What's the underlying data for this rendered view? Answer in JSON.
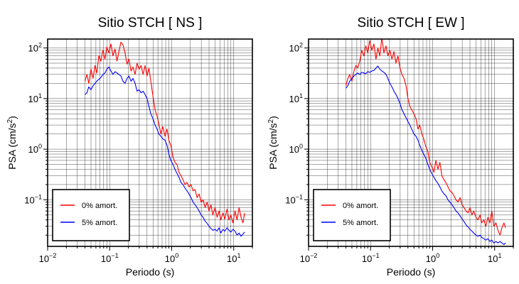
{
  "chart_data": [
    {
      "type": "line",
      "title": "Sitio STCH [ NS ]",
      "xlabel": "Periodo (s)",
      "ylabel_main": "PSA (cm/s",
      "ylabel_sup": "2",
      "ylabel_end": ")",
      "xscale": "log",
      "yscale": "log",
      "xlim": [
        0.01,
        20
      ],
      "ylim": [
        0.012,
        150
      ],
      "x_ticks": [
        {
          "value": 0.01,
          "base": "10",
          "exp": "−2"
        },
        {
          "value": 0.1,
          "base": "10",
          "exp": "−1"
        },
        {
          "value": 1,
          "base": "10",
          "exp": "0"
        },
        {
          "value": 10,
          "base": "10",
          "exp": "1"
        }
      ],
      "y_ticks": [
        {
          "value": 0.1,
          "base": "10",
          "exp": "−1"
        },
        {
          "value": 1,
          "base": "10",
          "exp": "0"
        },
        {
          "value": 10,
          "base": "10",
          "exp": "1"
        },
        {
          "value": 100,
          "base": "10",
          "exp": "2"
        }
      ],
      "grid": true,
      "legend_position": "bottom-left",
      "series": [
        {
          "name": "0% amort.",
          "color": "#ff0000",
          "x": [
            0.04,
            0.043,
            0.046,
            0.05,
            0.054,
            0.058,
            0.062,
            0.067,
            0.072,
            0.078,
            0.084,
            0.09,
            0.097,
            0.105,
            0.113,
            0.122,
            0.131,
            0.141,
            0.152,
            0.164,
            0.177,
            0.19,
            0.205,
            0.221,
            0.238,
            0.257,
            0.277,
            0.298,
            0.321,
            0.346,
            0.373,
            0.4,
            0.43,
            0.46,
            0.5,
            0.54,
            0.58,
            0.62,
            0.67,
            0.72,
            0.78,
            0.84,
            0.9,
            0.97,
            1.05,
            1.13,
            1.22,
            1.31,
            1.41,
            1.52,
            1.64,
            1.77,
            1.9,
            2.05,
            2.21,
            2.38,
            2.57,
            2.77,
            2.98,
            3.21,
            3.46,
            3.73,
            4.0,
            4.3,
            4.6,
            5.0,
            5.4,
            5.8,
            6.2,
            6.7,
            7.2,
            7.8,
            8.4,
            9.0,
            9.7,
            10.5,
            11.3,
            12.2,
            13.1,
            14.1,
            15.0
          ],
          "y": [
            22,
            30,
            20,
            38,
            25,
            45,
            32,
            70,
            55,
            90,
            60,
            105,
            80,
            120,
            70,
            95,
            55,
            85,
            130,
            115,
            80,
            48,
            60,
            35,
            42,
            30,
            50,
            38,
            45,
            30,
            45,
            28,
            40,
            22,
            11,
            6,
            4.5,
            3.2,
            2.0,
            2.8,
            1.8,
            2.5,
            1.5,
            1.2,
            0.7,
            0.55,
            0.5,
            0.35,
            0.3,
            0.25,
            0.2,
            0.22,
            0.18,
            0.2,
            0.15,
            0.16,
            0.11,
            0.13,
            0.09,
            0.1,
            0.07,
            0.09,
            0.06,
            0.08,
            0.05,
            0.07,
            0.045,
            0.06,
            0.04,
            0.055,
            0.042,
            0.065,
            0.04,
            0.05,
            0.035,
            0.06,
            0.04,
            0.07,
            0.045,
            0.035,
            0.055
          ]
        },
        {
          "name": "5% amort.",
          "color": "#0000ff",
          "x": [
            0.04,
            0.043,
            0.046,
            0.05,
            0.054,
            0.058,
            0.062,
            0.067,
            0.072,
            0.078,
            0.084,
            0.09,
            0.097,
            0.105,
            0.113,
            0.122,
            0.131,
            0.141,
            0.152,
            0.164,
            0.177,
            0.19,
            0.205,
            0.221,
            0.238,
            0.257,
            0.277,
            0.298,
            0.321,
            0.346,
            0.373,
            0.4,
            0.43,
            0.46,
            0.5,
            0.54,
            0.58,
            0.62,
            0.67,
            0.72,
            0.78,
            0.84,
            0.9,
            0.97,
            1.05,
            1.13,
            1.22,
            1.31,
            1.41,
            1.52,
            1.64,
            1.77,
            1.9,
            2.05,
            2.21,
            2.38,
            2.57,
            2.77,
            2.98,
            3.21,
            3.46,
            3.73,
            4.0,
            4.3,
            4.6,
            5.0,
            5.4,
            5.8,
            6.2,
            6.7,
            7.2,
            7.8,
            8.4,
            9.0,
            9.7,
            10.5,
            11.3,
            12.2,
            13.1,
            14.1,
            15.0
          ],
          "y": [
            12,
            13,
            17,
            15,
            18,
            20,
            22,
            24,
            26,
            30,
            32,
            38,
            42,
            35,
            30,
            34,
            32,
            30,
            28,
            22,
            20,
            25,
            28,
            22,
            25,
            20,
            14,
            15,
            13,
            14,
            12,
            10,
            7,
            5,
            4,
            3.0,
            2.5,
            2.0,
            1.8,
            1.6,
            1.5,
            1.2,
            0.8,
            0.6,
            0.5,
            0.4,
            0.33,
            0.28,
            0.22,
            0.2,
            0.17,
            0.15,
            0.13,
            0.11,
            0.09,
            0.08,
            0.07,
            0.06,
            0.05,
            0.045,
            0.038,
            0.034,
            0.03,
            0.027,
            0.025,
            0.026,
            0.024,
            0.028,
            0.022,
            0.026,
            0.024,
            0.028,
            0.025,
            0.023,
            0.026,
            0.024,
            0.02,
            0.022,
            0.019,
            0.021,
            0.023
          ]
        }
      ]
    },
    {
      "type": "line",
      "title": "Sitio STCH [ EW ]",
      "xlabel": "Periodo (s)",
      "ylabel_main": "PSA (cm/s",
      "ylabel_sup": "2",
      "ylabel_end": ")",
      "xscale": "log",
      "yscale": "log",
      "xlim": [
        0.01,
        20
      ],
      "ylim": [
        0.012,
        150
      ],
      "x_ticks": [
        {
          "value": 0.01,
          "base": "10",
          "exp": "−2"
        },
        {
          "value": 0.1,
          "base": "10",
          "exp": "−1"
        },
        {
          "value": 1,
          "base": "10",
          "exp": "0"
        },
        {
          "value": 10,
          "base": "10",
          "exp": "1"
        }
      ],
      "y_ticks": [
        {
          "value": 0.1,
          "base": "10",
          "exp": "−1"
        },
        {
          "value": 1,
          "base": "10",
          "exp": "0"
        },
        {
          "value": 10,
          "base": "10",
          "exp": "1"
        },
        {
          "value": 100,
          "base": "10",
          "exp": "2"
        }
      ],
      "grid": true,
      "legend_position": "bottom-left",
      "series": [
        {
          "name": "0% amort.",
          "color": "#ff0000",
          "x": [
            0.04,
            0.043,
            0.046,
            0.05,
            0.054,
            0.058,
            0.062,
            0.067,
            0.072,
            0.078,
            0.084,
            0.09,
            0.097,
            0.105,
            0.113,
            0.122,
            0.131,
            0.141,
            0.152,
            0.164,
            0.177,
            0.19,
            0.205,
            0.221,
            0.238,
            0.257,
            0.277,
            0.298,
            0.321,
            0.346,
            0.373,
            0.4,
            0.43,
            0.46,
            0.5,
            0.54,
            0.58,
            0.62,
            0.67,
            0.72,
            0.78,
            0.84,
            0.9,
            0.97,
            1.05,
            1.13,
            1.22,
            1.31,
            1.41,
            1.52,
            1.64,
            1.77,
            1.9,
            2.05,
            2.21,
            2.38,
            2.57,
            2.77,
            2.98,
            3.21,
            3.46,
            3.73,
            4.0,
            4.3,
            4.6,
            5.0,
            5.4,
            5.8,
            6.2,
            6.7,
            7.2,
            7.8,
            8.4,
            9.0,
            9.7,
            10.5,
            11.3,
            12.2,
            13.1,
            14.1,
            15.0
          ],
          "y": [
            18,
            25,
            30,
            22,
            35,
            45,
            40,
            55,
            90,
            70,
            110,
            80,
            140,
            90,
            120,
            60,
            100,
            70,
            160,
            80,
            110,
            70,
            90,
            60,
            85,
            50,
            70,
            40,
            30,
            25,
            18,
            10,
            7,
            6,
            5,
            4,
            2.5,
            3,
            2.0,
            1.6,
            1.1,
            0.9,
            0.55,
            0.45,
            0.35,
            0.6,
            0.4,
            0.55,
            0.3,
            0.25,
            0.22,
            0.18,
            0.15,
            0.14,
            0.12,
            0.1,
            0.09,
            0.11,
            0.08,
            0.07,
            0.06,
            0.055,
            0.07,
            0.05,
            0.06,
            0.045,
            0.04,
            0.05,
            0.035,
            0.04,
            0.03,
            0.045,
            0.035,
            0.06,
            0.03,
            0.035,
            0.025,
            0.02,
            0.028,
            0.035,
            0.028
          ]
        },
        {
          "name": "5% amort.",
          "color": "#0000ff",
          "x": [
            0.04,
            0.043,
            0.046,
            0.05,
            0.054,
            0.058,
            0.062,
            0.067,
            0.072,
            0.078,
            0.084,
            0.09,
            0.097,
            0.105,
            0.113,
            0.122,
            0.131,
            0.141,
            0.152,
            0.164,
            0.177,
            0.19,
            0.205,
            0.221,
            0.238,
            0.257,
            0.277,
            0.298,
            0.321,
            0.346,
            0.373,
            0.4,
            0.43,
            0.46,
            0.5,
            0.54,
            0.58,
            0.62,
            0.67,
            0.72,
            0.78,
            0.84,
            0.9,
            0.97,
            1.05,
            1.13,
            1.22,
            1.31,
            1.41,
            1.52,
            1.64,
            1.77,
            1.9,
            2.05,
            2.21,
            2.38,
            2.57,
            2.77,
            2.98,
            3.21,
            3.46,
            3.73,
            4.0,
            4.3,
            4.6,
            5.0,
            5.4,
            5.8,
            6.2,
            6.7,
            7.2,
            7.8,
            8.4,
            9.0,
            9.7,
            10.5,
            11.3,
            12.2,
            13.1,
            14.1,
            15.0
          ],
          "y": [
            16,
            18,
            22,
            25,
            28,
            30,
            32,
            30,
            33,
            32,
            31,
            34,
            33,
            35,
            36,
            40,
            44,
            38,
            35,
            33,
            30,
            25,
            20,
            17,
            14,
            12,
            10,
            8,
            6,
            5,
            4.2,
            3.5,
            3.0,
            2.5,
            2.0,
            1.8,
            1.5,
            1.2,
            0.95,
            0.8,
            0.65,
            0.5,
            0.4,
            0.33,
            0.28,
            0.24,
            0.21,
            0.18,
            0.15,
            0.13,
            0.12,
            0.1,
            0.09,
            0.08,
            0.07,
            0.06,
            0.055,
            0.048,
            0.042,
            0.037,
            0.032,
            0.029,
            0.026,
            0.024,
            0.022,
            0.02,
            0.019,
            0.02,
            0.018,
            0.017,
            0.016,
            0.017,
            0.015,
            0.016,
            0.014,
            0.015,
            0.014,
            0.015,
            0.014,
            0.013,
            0.014
          ]
        }
      ]
    }
  ]
}
